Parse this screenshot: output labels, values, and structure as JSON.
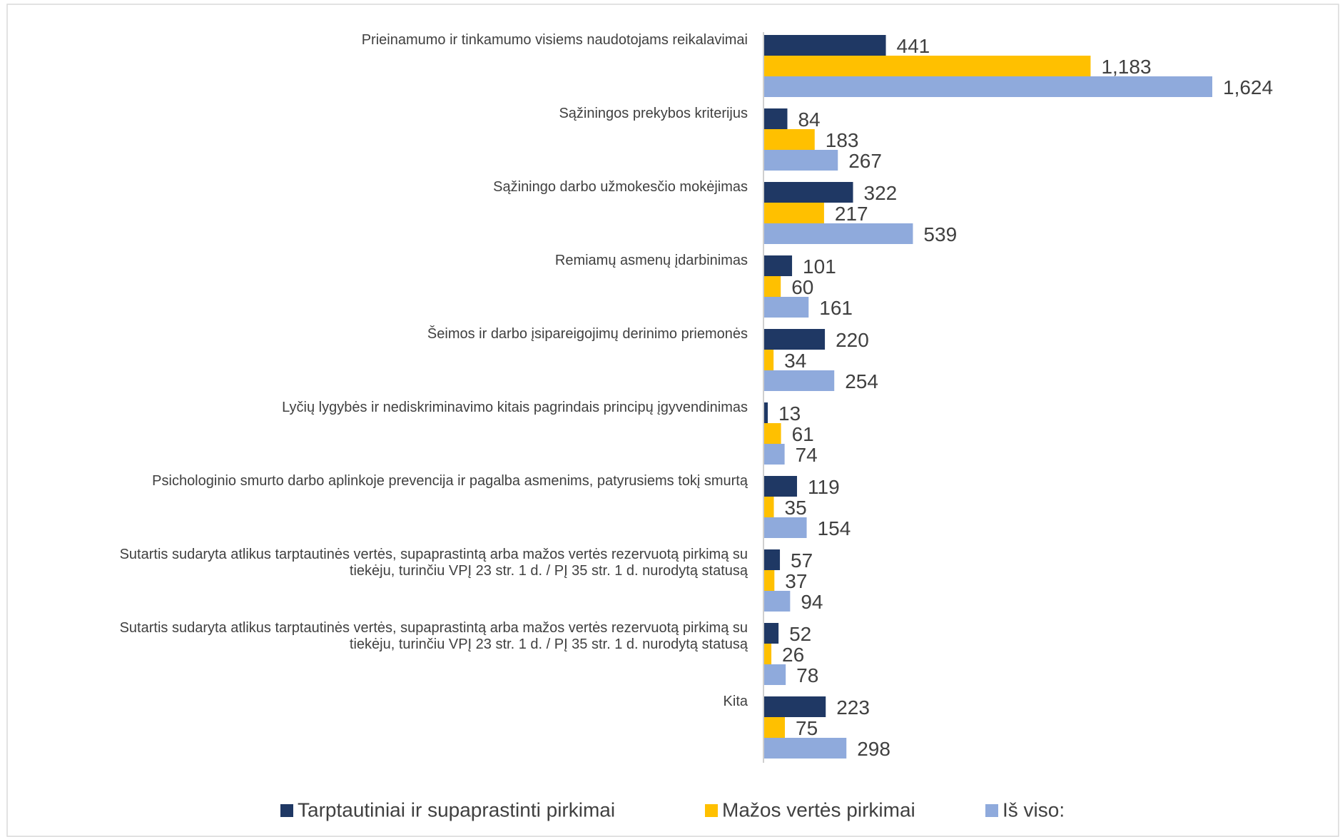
{
  "chart_data": {
    "type": "hbar",
    "categories": [
      "Prieinamumo ir tinkamumo visiems naudotojams reikalavimai",
      "Sąžiningos prekybos kriterijus",
      "Sąžiningo darbo užmokesčio mokėjimas",
      "Remiamų asmenų įdarbinimas",
      "Šeimos ir darbo įsipareigojimų derinimo priemonės",
      "Lyčių lygybės ir nediskriminavimo kitais pagrindais principų įgyvendinimas",
      "Psichologinio smurto darbo aplinkoje prevencija ir pagalba asmenims, patyrusiems tokį smurtą",
      "Sutartis sudaryta atlikus tarptautinės vertės, supaprastintą arba mažos vertės rezervuotą pirkimą su tiekėju, turinčiu VPĮ 23 str. 1 d. / PĮ 35 str. 1 d. nurodytą statusą",
      "Sutartis sudaryta atlikus tarptautinės vertės, supaprastintą arba mažos vertės rezervuotą pirkimą su tiekėju, turinčiu VPĮ 23 str. 1 d. / PĮ 35 str. 1 d. nurodytą statusą",
      "Kita"
    ],
    "series": [
      {
        "name": "Tarptautiniai ir supaprastinti pirkimai",
        "color": "#1f3864",
        "values": [
          441,
          84,
          322,
          101,
          220,
          13,
          119,
          57,
          52,
          223
        ]
      },
      {
        "name": "Mažos vertės pirkimai",
        "color": "#ffc000",
        "values": [
          1183,
          183,
          217,
          60,
          34,
          61,
          35,
          37,
          26,
          75
        ],
        "value_labels": [
          "1,183",
          "183",
          "217",
          "60",
          "34",
          "61",
          "35",
          "37",
          "26",
          "75"
        ]
      },
      {
        "name": "Iš viso:",
        "color": "#8faadc",
        "values": [
          1624,
          267,
          539,
          161,
          254,
          74,
          154,
          94,
          78,
          298
        ],
        "value_labels": [
          "1,624",
          "267",
          "539",
          "161",
          "254",
          "74",
          "154",
          "94",
          "78",
          "298"
        ]
      }
    ],
    "legend": "bottom"
  }
}
